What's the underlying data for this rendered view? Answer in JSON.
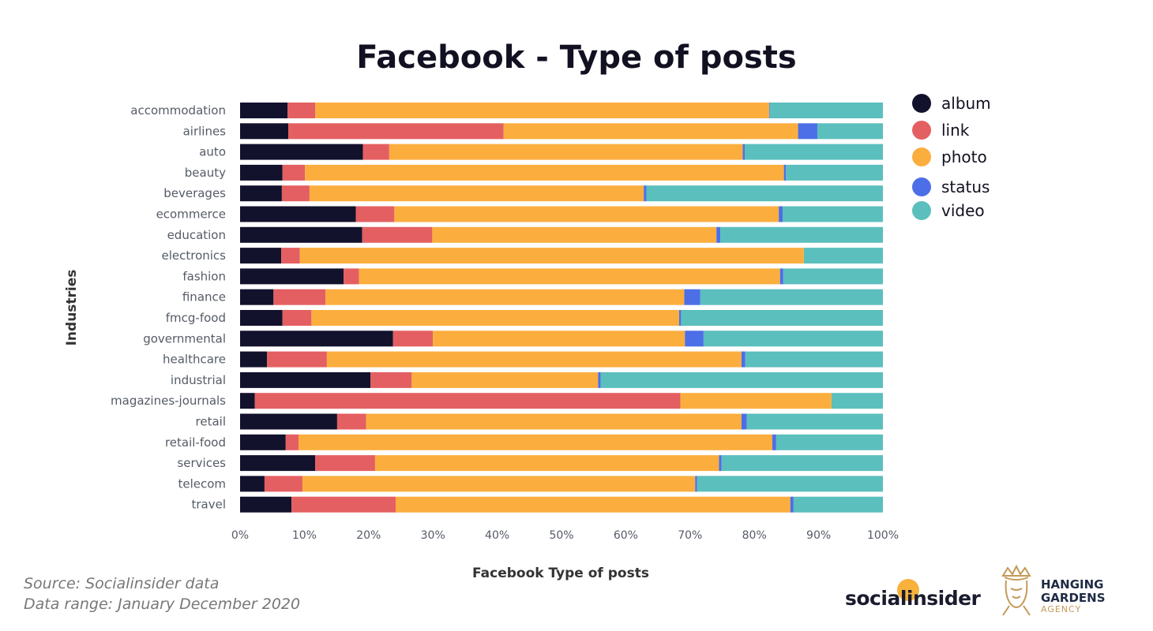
{
  "colors": {
    "album": "#13122d",
    "link": "#e45f61",
    "photo": "#fbae3e",
    "status": "#4c6fe7",
    "video": "#5bbfbd",
    "brand_dot": "#f7b23b",
    "brand_gold": "#c49a57"
  },
  "chart_data": {
    "type": "bar",
    "orientation": "horizontal",
    "stacked": true,
    "normalized": true,
    "title": "Facebook - Type of posts",
    "xlabel": "Facebook Type of posts",
    "ylabel": "Industries",
    "xlim": [
      0,
      100
    ],
    "xticks": [
      "0%",
      "10%",
      "20%",
      "30%",
      "40%",
      "50%",
      "60%",
      "70%",
      "80%",
      "90%",
      "100%"
    ],
    "legend_position": "right",
    "categories": [
      "accommodation",
      "airlines",
      "auto",
      "beauty",
      "beverages",
      "ecommerce",
      "education",
      "electronics",
      "fashion",
      "finance",
      "fmcg-food",
      "governmental",
      "healthcare",
      "industrial",
      "magazines-journals",
      "retail",
      "retail-food",
      "services",
      "telecom",
      "travel"
    ],
    "series": [
      {
        "name": "album",
        "legend_label": "album",
        "values": [
          7.4,
          7.5,
          19.1,
          6.6,
          6.5,
          18.0,
          19.0,
          6.4,
          16.1,
          5.2,
          6.6,
          23.8,
          4.2,
          20.3,
          2.3,
          15.1,
          7.1,
          11.7,
          3.8,
          8.0
        ]
      },
      {
        "name": "link",
        "legend_label": " link",
        "values": [
          4.3,
          33.5,
          4.1,
          3.5,
          4.3,
          6.0,
          10.9,
          2.9,
          2.4,
          8.1,
          4.5,
          6.2,
          9.3,
          6.4,
          66.2,
          4.5,
          2.0,
          9.3,
          5.9,
          16.2
        ]
      },
      {
        "name": "photo",
        "legend_label": "photo",
        "values": [
          70.6,
          45.8,
          55.0,
          74.5,
          52.0,
          59.8,
          44.2,
          78.4,
          65.5,
          55.8,
          57.2,
          39.2,
          64.5,
          29.0,
          23.5,
          58.4,
          73.7,
          53.5,
          61.1,
          61.4
        ]
      },
      {
        "name": "status",
        "legend_label": "status",
        "values": [
          0.1,
          3.0,
          0.3,
          0.3,
          0.4,
          0.6,
          0.6,
          0.0,
          0.5,
          2.5,
          0.3,
          2.9,
          0.6,
          0.4,
          0.0,
          0.8,
          0.6,
          0.4,
          0.3,
          0.5
        ]
      },
      {
        "name": "video",
        "legend_label": "video",
        "values": [
          17.6,
          10.2,
          21.5,
          15.1,
          36.8,
          15.6,
          25.3,
          12.3,
          15.5,
          28.4,
          31.4,
          27.9,
          21.4,
          43.9,
          8.0,
          21.2,
          16.6,
          25.1,
          28.9,
          13.9
        ]
      }
    ]
  },
  "footer": {
    "source": "Source: Socialinsider data",
    "range": "Data range: January  December 2020"
  },
  "logos": {
    "socialinsider": "socialinsider",
    "hanging_gardens_line1": "HANGING",
    "hanging_gardens_line2": "GARDENS",
    "hanging_gardens_line3": "AGENCY"
  }
}
